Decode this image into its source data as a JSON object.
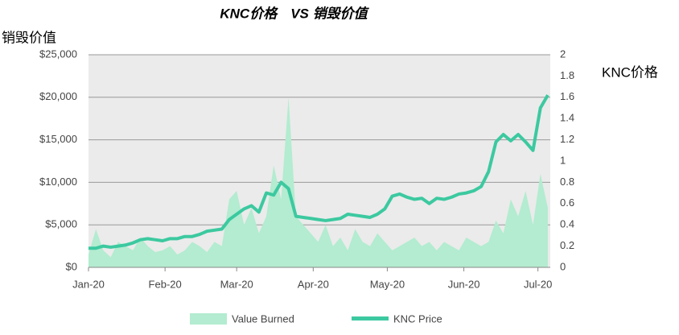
{
  "chart_data": {
    "type": "area-line",
    "title": "KNC价格　VS 销毁价值",
    "y_label": "销毁价值",
    "y2_label": "KNC价格",
    "x": [
      0,
      3,
      6,
      9,
      12,
      15,
      18,
      21,
      24,
      27,
      30,
      33,
      36,
      39,
      42,
      45,
      48,
      51,
      54,
      57,
      60,
      63,
      66,
      69,
      72,
      75,
      78,
      81,
      84,
      87,
      90,
      93,
      96,
      99,
      102,
      105,
      108,
      111,
      114,
      117,
      120,
      123,
      126,
      129,
      132,
      135,
      138,
      141,
      144,
      147,
      150,
      153,
      156,
      159,
      162,
      165,
      168,
      171,
      174,
      177,
      180,
      183,
      186
    ],
    "xlim": [
      0,
      187
    ],
    "xticks": [
      {
        "value": 0,
        "label": "Jan-20"
      },
      {
        "value": 31,
        "label": "Feb-20"
      },
      {
        "value": 60,
        "label": "Mar-20"
      },
      {
        "value": 91,
        "label": "Apr-20"
      },
      {
        "value": 121,
        "label": "May-20"
      },
      {
        "value": 152,
        "label": "Jun-20"
      },
      {
        "value": 182,
        "label": "Jul-20"
      }
    ],
    "ylim": [
      0,
      25000
    ],
    "yticks": [
      {
        "value": 0,
        "label": "$0"
      },
      {
        "value": 5000,
        "label": "$5,000"
      },
      {
        "value": 10000,
        "label": "$10,000"
      },
      {
        "value": 15000,
        "label": "$15,000"
      },
      {
        "value": 20000,
        "label": "$20,000"
      },
      {
        "value": 25000,
        "label": "$25,000"
      }
    ],
    "y2lim": [
      0,
      2
    ],
    "y2ticks": [
      0,
      0.2,
      0.4,
      0.6,
      0.8,
      1,
      1.2,
      1.4,
      1.6,
      1.8,
      2
    ],
    "grid": true,
    "series": [
      {
        "name": "Value Burned",
        "color": "#b3ecd0",
        "kind": "area",
        "values": [
          1500,
          4500,
          2000,
          1200,
          3000,
          2500,
          2000,
          3500,
          2500,
          1800,
          2000,
          2500,
          1500,
          2000,
          3000,
          2500,
          1800,
          3000,
          2500,
          8000,
          9000,
          5000,
          7000,
          4000,
          6000,
          12000,
          8000,
          20000,
          6000,
          5000,
          4000,
          3000,
          5000,
          2500,
          3500,
          2000,
          4500,
          3000,
          2500,
          4000,
          3000,
          2000,
          2500,
          3000,
          3500,
          2500,
          3000,
          2000,
          3000,
          2500,
          2000,
          3500,
          3000,
          2500,
          3000,
          5500,
          4000,
          8000,
          6000,
          9000,
          5000,
          11000,
          7000
        ]
      },
      {
        "name": "KNC Price",
        "color": "#3cc9a0",
        "kind": "line",
        "axis": "y2",
        "values": [
          0.18,
          0.18,
          0.2,
          0.19,
          0.2,
          0.21,
          0.23,
          0.26,
          0.27,
          0.26,
          0.25,
          0.27,
          0.27,
          0.29,
          0.29,
          0.31,
          0.34,
          0.35,
          0.36,
          0.45,
          0.5,
          0.55,
          0.58,
          0.52,
          0.7,
          0.68,
          0.8,
          0.74,
          0.48,
          0.47,
          0.46,
          0.45,
          0.44,
          0.45,
          0.46,
          0.5,
          0.49,
          0.48,
          0.47,
          0.5,
          0.55,
          0.67,
          0.69,
          0.66,
          0.64,
          0.65,
          0.6,
          0.65,
          0.64,
          0.66,
          0.69,
          0.7,
          0.72,
          0.76,
          0.9,
          1.18,
          1.25,
          1.19,
          1.25,
          1.18,
          1.1,
          1.5,
          1.62
        ]
      }
    ]
  }
}
